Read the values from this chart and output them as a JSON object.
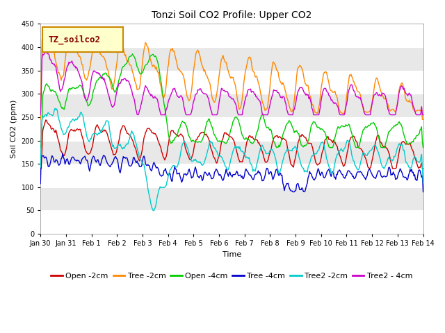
{
  "title": "Tonzi Soil CO2 Profile: Upper CO2",
  "xlabel": "Time",
  "ylabel": "Soil CO2 (ppm)",
  "ylim": [
    0,
    450
  ],
  "legend_label": "TZ_soilco2",
  "series_names": [
    "Open -2cm",
    "Tree -2cm",
    "Open -4cm",
    "Tree -4cm",
    "Tree2 -2cm",
    "Tree2 - 4cm"
  ],
  "series_colors": [
    "#cc0000",
    "#ff8800",
    "#00cc00",
    "#0000cc",
    "#00cccc",
    "#cc00cc"
  ],
  "xtick_labels": [
    "Jan 30",
    "Jan 31",
    "Feb 1",
    "Feb 2",
    "Feb 3",
    "Feb 4",
    "Feb 5",
    "Feb 6",
    "Feb 7",
    "Feb 8",
    "Feb 9",
    "Feb 10",
    "Feb 11",
    "Feb 12",
    "Feb 13",
    "Feb 14"
  ],
  "n_points": 500,
  "plot_bg": "#ffffff",
  "band_color": "#e8e8e8",
  "legend_box_facecolor": "#ffffcc",
  "legend_box_edgecolor": "#cc8800",
  "legend_text_color": "#880000",
  "title_fontsize": 10,
  "axis_label_fontsize": 8,
  "tick_fontsize": 7,
  "legend_fontsize": 8,
  "lw": 1.0
}
